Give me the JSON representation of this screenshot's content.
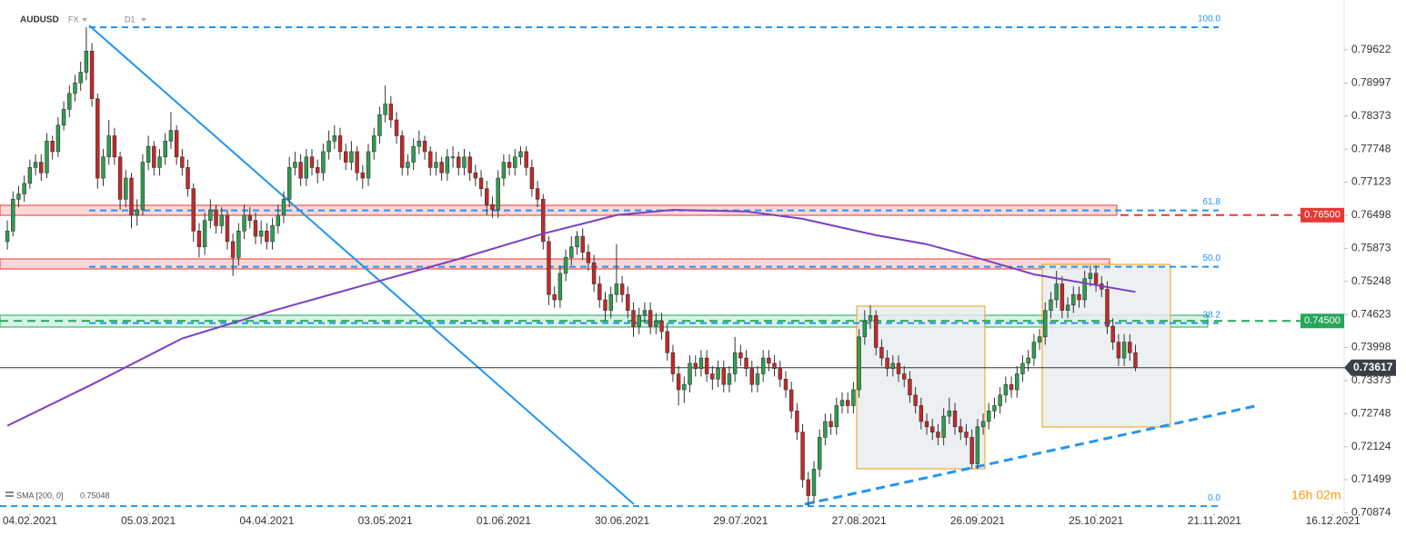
{
  "chart_data": {
    "type": "candlestick",
    "symbol": "AUDUSD",
    "market": "FX",
    "interval": "D1",
    "up_color": "#2e9e4f",
    "down_color": "#c62828",
    "xlim": [
      -1.3,
      237
    ],
    "xticks": [
      {
        "value": 4,
        "label": "04.02.2021"
      },
      {
        "value": 25,
        "label": "05.03.2021"
      },
      {
        "value": 46,
        "label": "04.04.2021"
      },
      {
        "value": 67,
        "label": "03.05.2021"
      },
      {
        "value": 88,
        "label": "01.06.2021"
      },
      {
        "value": 109,
        "label": "30.06.2021"
      },
      {
        "value": 130,
        "label": "29.07.2021"
      },
      {
        "value": 151,
        "label": "27.08.2021"
      },
      {
        "value": 172,
        "label": "26.09.2021"
      },
      {
        "value": 193,
        "label": "25.10.2021"
      },
      {
        "value": 214,
        "label": "21.11.2021"
      },
      {
        "value": 235,
        "label": "16.12.2021"
      }
    ],
    "ylim": [
      0.70865,
      0.80566
    ],
    "yticks": [
      0.79622,
      0.78997,
      0.78373,
      0.77748,
      0.77123,
      0.76498,
      0.75873,
      0.75248,
      0.74623,
      0.73998,
      0.73373,
      0.72748,
      0.72124,
      0.71499,
      0.70874
    ],
    "candles": [
      [
        0.76,
        0.764,
        0.7585,
        0.762
      ],
      [
        0.762,
        0.7695,
        0.761,
        0.768
      ],
      [
        0.768,
        0.7705,
        0.7665,
        0.769
      ],
      [
        0.769,
        0.7725,
        0.7675,
        0.771
      ],
      [
        0.771,
        0.7755,
        0.77,
        0.774
      ],
      [
        0.774,
        0.7765,
        0.7725,
        0.775
      ],
      [
        0.775,
        0.7765,
        0.7715,
        0.773
      ],
      [
        0.773,
        0.7805,
        0.772,
        0.779
      ],
      [
        0.779,
        0.78,
        0.7755,
        0.777
      ],
      [
        0.777,
        0.7835,
        0.776,
        0.782
      ],
      [
        0.782,
        0.7865,
        0.781,
        0.785
      ],
      [
        0.785,
        0.7895,
        0.7835,
        0.788
      ],
      [
        0.788,
        0.7915,
        0.7865,
        0.79
      ],
      [
        0.79,
        0.794,
        0.7885,
        0.792
      ],
      [
        0.792,
        0.8005,
        0.7905,
        0.796
      ],
      [
        0.796,
        0.7975,
        0.7855,
        0.787
      ],
      [
        0.787,
        0.788,
        0.77,
        0.772
      ],
      [
        0.772,
        0.7775,
        0.7705,
        0.776
      ],
      [
        0.776,
        0.783,
        0.7745,
        0.78
      ],
      [
        0.78,
        0.7815,
        0.7745,
        0.776
      ],
      [
        0.776,
        0.777,
        0.766,
        0.768
      ],
      [
        0.768,
        0.7735,
        0.7665,
        0.772
      ],
      [
        0.772,
        0.773,
        0.7625,
        0.765
      ],
      [
        0.765,
        0.768,
        0.763,
        0.766
      ],
      [
        0.766,
        0.7765,
        0.765,
        0.775
      ],
      [
        0.775,
        0.78,
        0.7735,
        0.778
      ],
      [
        0.778,
        0.779,
        0.7725,
        0.774
      ],
      [
        0.774,
        0.7775,
        0.7725,
        0.776
      ],
      [
        0.776,
        0.7805,
        0.7745,
        0.779
      ],
      [
        0.779,
        0.7845,
        0.7775,
        0.781
      ],
      [
        0.781,
        0.782,
        0.7745,
        0.776
      ],
      [
        0.776,
        0.7775,
        0.7725,
        0.774
      ],
      [
        0.774,
        0.7755,
        0.7685,
        0.77
      ],
      [
        0.77,
        0.771,
        0.76,
        0.762
      ],
      [
        0.762,
        0.7635,
        0.757,
        0.759
      ],
      [
        0.759,
        0.7655,
        0.7575,
        0.764
      ],
      [
        0.764,
        0.768,
        0.7625,
        0.766
      ],
      [
        0.766,
        0.767,
        0.7615,
        0.763
      ],
      [
        0.763,
        0.7665,
        0.7615,
        0.765
      ],
      [
        0.765,
        0.766,
        0.7585,
        0.76
      ],
      [
        0.76,
        0.7615,
        0.7535,
        0.757
      ],
      [
        0.757,
        0.7635,
        0.7555,
        0.762
      ],
      [
        0.762,
        0.767,
        0.7605,
        0.765
      ],
      [
        0.765,
        0.7665,
        0.7625,
        0.764
      ],
      [
        0.764,
        0.7655,
        0.7595,
        0.761
      ],
      [
        0.761,
        0.764,
        0.7595,
        0.762
      ],
      [
        0.762,
        0.7635,
        0.7585,
        0.76
      ],
      [
        0.76,
        0.7645,
        0.7585,
        0.763
      ],
      [
        0.763,
        0.767,
        0.7615,
        0.765
      ],
      [
        0.765,
        0.7695,
        0.7635,
        0.768
      ],
      [
        0.768,
        0.776,
        0.7665,
        0.774
      ],
      [
        0.774,
        0.777,
        0.7725,
        0.775
      ],
      [
        0.775,
        0.7765,
        0.7705,
        0.772
      ],
      [
        0.772,
        0.7775,
        0.7705,
        0.776
      ],
      [
        0.776,
        0.7775,
        0.7725,
        0.774
      ],
      [
        0.774,
        0.7755,
        0.771,
        0.773
      ],
      [
        0.773,
        0.7785,
        0.7715,
        0.777
      ],
      [
        0.777,
        0.781,
        0.7755,
        0.779
      ],
      [
        0.779,
        0.782,
        0.7775,
        0.78
      ],
      [
        0.78,
        0.7815,
        0.7755,
        0.777
      ],
      [
        0.777,
        0.7785,
        0.7735,
        0.775
      ],
      [
        0.775,
        0.779,
        0.7735,
        0.777
      ],
      [
        0.777,
        0.778,
        0.7715,
        0.773
      ],
      [
        0.773,
        0.7745,
        0.77,
        0.772
      ],
      [
        0.772,
        0.7785,
        0.7705,
        0.777
      ],
      [
        0.777,
        0.7815,
        0.7755,
        0.78
      ],
      [
        0.78,
        0.7855,
        0.7785,
        0.784
      ],
      [
        0.784,
        0.7895,
        0.7825,
        0.786
      ],
      [
        0.786,
        0.7875,
        0.7815,
        0.783
      ],
      [
        0.783,
        0.7845,
        0.7785,
        0.78
      ],
      [
        0.78,
        0.781,
        0.7725,
        0.774
      ],
      [
        0.774,
        0.7765,
        0.7725,
        0.775
      ],
      [
        0.775,
        0.7795,
        0.7735,
        0.778
      ],
      [
        0.778,
        0.781,
        0.7765,
        0.779
      ],
      [
        0.779,
        0.78,
        0.7755,
        0.777
      ],
      [
        0.777,
        0.778,
        0.7725,
        0.774
      ],
      [
        0.774,
        0.777,
        0.7725,
        0.775
      ],
      [
        0.775,
        0.776,
        0.7715,
        0.773
      ],
      [
        0.773,
        0.7775,
        0.7715,
        0.776
      ],
      [
        0.776,
        0.778,
        0.774,
        0.776
      ],
      [
        0.776,
        0.777,
        0.7725,
        0.774
      ],
      [
        0.774,
        0.7775,
        0.7725,
        0.776
      ],
      [
        0.776,
        0.777,
        0.7715,
        0.773
      ],
      [
        0.773,
        0.7745,
        0.7705,
        0.772
      ],
      [
        0.772,
        0.7735,
        0.7685,
        0.77
      ],
      [
        0.77,
        0.7715,
        0.765,
        0.767
      ],
      [
        0.767,
        0.7685,
        0.7645,
        0.766
      ],
      [
        0.766,
        0.7735,
        0.7645,
        0.772
      ],
      [
        0.772,
        0.7765,
        0.7705,
        0.775
      ],
      [
        0.775,
        0.7765,
        0.7725,
        0.774
      ],
      [
        0.774,
        0.7775,
        0.7725,
        0.776
      ],
      [
        0.776,
        0.778,
        0.7745,
        0.777
      ],
      [
        0.777,
        0.778,
        0.7725,
        0.774
      ],
      [
        0.774,
        0.7755,
        0.7685,
        0.77
      ],
      [
        0.77,
        0.7715,
        0.7665,
        0.768
      ],
      [
        0.768,
        0.769,
        0.7585,
        0.76
      ],
      [
        0.76,
        0.761,
        0.748,
        0.75
      ],
      [
        0.75,
        0.7515,
        0.7475,
        0.749
      ],
      [
        0.749,
        0.7555,
        0.7475,
        0.754
      ],
      [
        0.754,
        0.7585,
        0.7525,
        0.757
      ],
      [
        0.757,
        0.761,
        0.7555,
        0.759
      ],
      [
        0.759,
        0.762,
        0.7575,
        0.761
      ],
      [
        0.761,
        0.7625,
        0.7565,
        0.758
      ],
      [
        0.758,
        0.7595,
        0.7545,
        0.756
      ],
      [
        0.756,
        0.7575,
        0.7505,
        0.752
      ],
      [
        0.752,
        0.7535,
        0.7475,
        0.749
      ],
      [
        0.749,
        0.7505,
        0.745,
        0.747
      ],
      [
        0.747,
        0.7515,
        0.7455,
        0.75
      ],
      [
        0.75,
        0.7595,
        0.7485,
        0.752
      ],
      [
        0.752,
        0.7535,
        0.7485,
        0.75
      ],
      [
        0.75,
        0.7515,
        0.7455,
        0.747
      ],
      [
        0.747,
        0.7485,
        0.742,
        0.744
      ],
      [
        0.744,
        0.7475,
        0.7425,
        0.746
      ],
      [
        0.746,
        0.7485,
        0.7445,
        0.747
      ],
      [
        0.747,
        0.7485,
        0.7425,
        0.744
      ],
      [
        0.744,
        0.7465,
        0.7425,
        0.745
      ],
      [
        0.745,
        0.7465,
        0.7415,
        0.743
      ],
      [
        0.743,
        0.7445,
        0.7375,
        0.739
      ],
      [
        0.739,
        0.7405,
        0.7335,
        0.735
      ],
      [
        0.735,
        0.7365,
        0.729,
        0.732
      ],
      [
        0.732,
        0.7345,
        0.7295,
        0.733
      ],
      [
        0.733,
        0.7385,
        0.7315,
        0.737
      ],
      [
        0.737,
        0.7385,
        0.7345,
        0.736
      ],
      [
        0.736,
        0.7395,
        0.7345,
        0.738
      ],
      [
        0.738,
        0.7395,
        0.7335,
        0.735
      ],
      [
        0.735,
        0.7365,
        0.732,
        0.734
      ],
      [
        0.734,
        0.7375,
        0.7325,
        0.736
      ],
      [
        0.736,
        0.7375,
        0.7315,
        0.733
      ],
      [
        0.733,
        0.7365,
        0.7315,
        0.735
      ],
      [
        0.735,
        0.742,
        0.7335,
        0.739
      ],
      [
        0.739,
        0.7405,
        0.7365,
        0.738
      ],
      [
        0.738,
        0.7395,
        0.7345,
        0.736
      ],
      [
        0.736,
        0.7375,
        0.7315,
        0.733
      ],
      [
        0.733,
        0.7365,
        0.7315,
        0.735
      ],
      [
        0.735,
        0.7395,
        0.7335,
        0.738
      ],
      [
        0.738,
        0.7395,
        0.7355,
        0.737
      ],
      [
        0.737,
        0.7385,
        0.7345,
        0.736
      ],
      [
        0.736,
        0.7375,
        0.7325,
        0.734
      ],
      [
        0.734,
        0.7355,
        0.7305,
        0.732
      ],
      [
        0.732,
        0.7335,
        0.7265,
        0.728
      ],
      [
        0.728,
        0.7295,
        0.7225,
        0.724
      ],
      [
        0.724,
        0.7255,
        0.7135,
        0.715
      ],
      [
        0.715,
        0.7165,
        0.71,
        0.712
      ],
      [
        0.712,
        0.7185,
        0.7105,
        0.717
      ],
      [
        0.717,
        0.7245,
        0.7155,
        0.723
      ],
      [
        0.723,
        0.7275,
        0.7215,
        0.726
      ],
      [
        0.726,
        0.7275,
        0.7235,
        0.725
      ],
      [
        0.725,
        0.7305,
        0.7235,
        0.729
      ],
      [
        0.729,
        0.7315,
        0.7275,
        0.73
      ],
      [
        0.73,
        0.7315,
        0.7275,
        0.729
      ],
      [
        0.729,
        0.7335,
        0.7275,
        0.732
      ],
      [
        0.732,
        0.7435,
        0.7305,
        0.742
      ],
      [
        0.742,
        0.747,
        0.7405,
        0.745
      ],
      [
        0.745,
        0.748,
        0.7435,
        0.746
      ],
      [
        0.746,
        0.747,
        0.7385,
        0.74
      ],
      [
        0.74,
        0.7415,
        0.7365,
        0.738
      ],
      [
        0.738,
        0.7395,
        0.7345,
        0.736
      ],
      [
        0.736,
        0.7385,
        0.7345,
        0.737
      ],
      [
        0.737,
        0.7385,
        0.7335,
        0.735
      ],
      [
        0.735,
        0.7365,
        0.7325,
        0.734
      ],
      [
        0.734,
        0.7355,
        0.7295,
        0.731
      ],
      [
        0.731,
        0.7325,
        0.7275,
        0.729
      ],
      [
        0.729,
        0.7305,
        0.7245,
        0.726
      ],
      [
        0.726,
        0.7275,
        0.7235,
        0.725
      ],
      [
        0.725,
        0.7265,
        0.7225,
        0.724
      ],
      [
        0.724,
        0.7255,
        0.7215,
        0.723
      ],
      [
        0.723,
        0.7285,
        0.7215,
        0.727
      ],
      [
        0.727,
        0.7305,
        0.7255,
        0.728
      ],
      [
        0.728,
        0.7295,
        0.7235,
        0.725
      ],
      [
        0.725,
        0.7265,
        0.7225,
        0.724
      ],
      [
        0.724,
        0.7255,
        0.7215,
        0.723
      ],
      [
        0.723,
        0.7245,
        0.717,
        0.718
      ],
      [
        0.718,
        0.7265,
        0.717,
        0.725
      ],
      [
        0.725,
        0.7275,
        0.7235,
        0.726
      ],
      [
        0.726,
        0.7295,
        0.7245,
        0.728
      ],
      [
        0.728,
        0.7305,
        0.7265,
        0.729
      ],
      [
        0.729,
        0.7325,
        0.7275,
        0.731
      ],
      [
        0.731,
        0.7345,
        0.7295,
        0.733
      ],
      [
        0.733,
        0.7345,
        0.7305,
        0.732
      ],
      [
        0.732,
        0.7365,
        0.7305,
        0.735
      ],
      [
        0.735,
        0.7385,
        0.7335,
        0.737
      ],
      [
        0.737,
        0.7395,
        0.7355,
        0.738
      ],
      [
        0.738,
        0.7425,
        0.7365,
        0.741
      ],
      [
        0.741,
        0.7435,
        0.7395,
        0.742
      ],
      [
        0.742,
        0.7485,
        0.7405,
        0.747
      ],
      [
        0.747,
        0.7505,
        0.7455,
        0.749
      ],
      [
        0.749,
        0.7545,
        0.7475,
        0.752
      ],
      [
        0.752,
        0.7535,
        0.7455,
        0.747
      ],
      [
        0.747,
        0.7495,
        0.7455,
        0.748
      ],
      [
        0.748,
        0.7515,
        0.7465,
        0.75
      ],
      [
        0.75,
        0.7515,
        0.7475,
        0.749
      ],
      [
        0.749,
        0.7545,
        0.7475,
        0.753
      ],
      [
        0.753,
        0.7555,
        0.7515,
        0.754
      ],
      [
        0.754,
        0.7555,
        0.7505,
        0.752
      ],
      [
        0.752,
        0.7535,
        0.7495,
        0.751
      ],
      [
        0.751,
        0.7525,
        0.7425,
        0.744
      ],
      [
        0.744,
        0.7455,
        0.7395,
        0.741
      ],
      [
        0.741,
        0.7425,
        0.7365,
        0.738
      ],
      [
        0.738,
        0.7425,
        0.7365,
        0.741
      ],
      [
        0.741,
        0.7425,
        0.7375,
        0.739
      ],
      [
        0.739,
        0.7405,
        0.7355,
        0.73617
      ]
    ],
    "sma": {
      "name": "SMA [200, 0]",
      "last": 0.75048,
      "color": "#7b3fc4",
      "x": [
        0,
        15,
        31,
        47,
        63,
        79,
        95,
        108,
        118,
        131,
        141,
        154,
        163,
        173,
        182,
        200
      ],
      "values": [
        0.7252,
        0.733,
        0.7417,
        0.7469,
        0.7517,
        0.7564,
        0.7615,
        0.765,
        0.766,
        0.7657,
        0.7643,
        0.7612,
        0.7595,
        0.7566,
        0.7538,
        0.7505
      ]
    },
    "fib_levels": [
      {
        "label": "100.0",
        "value": 0.8005
      },
      {
        "label": "61.8",
        "value": 0.7659
      },
      {
        "label": "50.0",
        "value": 0.75525
      },
      {
        "label": "38.2",
        "value": 0.7446
      },
      {
        "label": "0.0",
        "value": 0.71
      }
    ],
    "fib_color": "#2196f3",
    "levels": [
      {
        "value": 0.765,
        "label": "0.76500",
        "color": "#e53935"
      },
      {
        "value": 0.745,
        "label": "0.74500",
        "color": "#26a65b"
      }
    ],
    "last_price": 0.73617,
    "countdown": "16h 02m"
  }
}
